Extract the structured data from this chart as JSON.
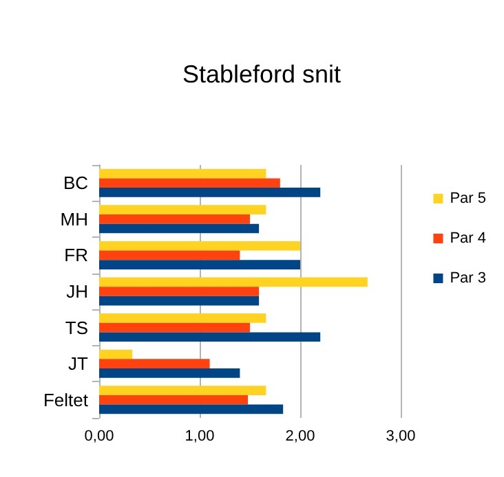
{
  "chart_data": {
    "type": "bar",
    "orientation": "horizontal",
    "title": "Stableford snit",
    "categories": [
      "BC",
      "MH",
      "FR",
      "JH",
      "TS",
      "JT",
      "Feltet"
    ],
    "series": [
      {
        "name": "Par 5",
        "color": "#ffd320",
        "values": [
          1.66,
          1.66,
          2.0,
          2.67,
          1.66,
          0.33,
          1.66
        ]
      },
      {
        "name": "Par 4",
        "color": "#ff420e",
        "values": [
          1.8,
          1.5,
          1.4,
          1.59,
          1.5,
          1.1,
          1.48
        ]
      },
      {
        "name": "Par 3",
        "color": "#004586",
        "values": [
          2.2,
          1.59,
          2.0,
          1.59,
          2.2,
          1.4,
          1.83
        ]
      }
    ],
    "xlim": [
      0,
      3
    ],
    "xticks": [
      {
        "value": 0,
        "label": "0,00"
      },
      {
        "value": 1,
        "label": "1,00"
      },
      {
        "value": 2,
        "label": "2,00"
      },
      {
        "value": 3,
        "label": "3,00"
      }
    ],
    "grid": "x",
    "legend": "right"
  }
}
